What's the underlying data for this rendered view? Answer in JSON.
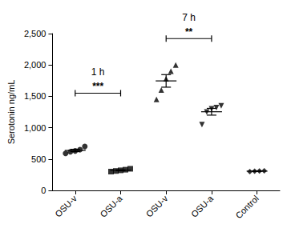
{
  "chart_data": {
    "type": "scatter",
    "y_label": "Serotonin ng/mL",
    "categories": [
      "OSU-v",
      "OSU-a",
      "OSU-v",
      "OSU-a",
      "Control"
    ],
    "markers": [
      "circle",
      "square",
      "triangle",
      "inverted_triangle",
      "diamond"
    ],
    "color": "#000000",
    "values": [
      [
        590,
        615,
        630,
        650,
        700
      ],
      [
        300,
        310,
        320,
        330,
        345
      ],
      [
        1450,
        1600,
        1780,
        1900,
        2000
      ],
      [
        1050,
        1250,
        1300,
        1320,
        1350
      ],
      [
        300,
        305,
        310,
        312
      ]
    ],
    "means": [
      637,
      321,
      1746,
      1254,
      307
    ],
    "errors": [
      19,
      8,
      100,
      54,
      3
    ],
    "ylim": [
      0,
      2500
    ],
    "yticks": [
      0,
      500,
      1000,
      1500,
      2000,
      2500
    ],
    "grid": false,
    "significance": [
      {
        "from": 0,
        "to": 1,
        "y": 1550,
        "label": "***",
        "group_label": "1 h"
      },
      {
        "from": 2,
        "to": 3,
        "y": 2420,
        "label": "**",
        "group_label": "7 h"
      }
    ]
  }
}
